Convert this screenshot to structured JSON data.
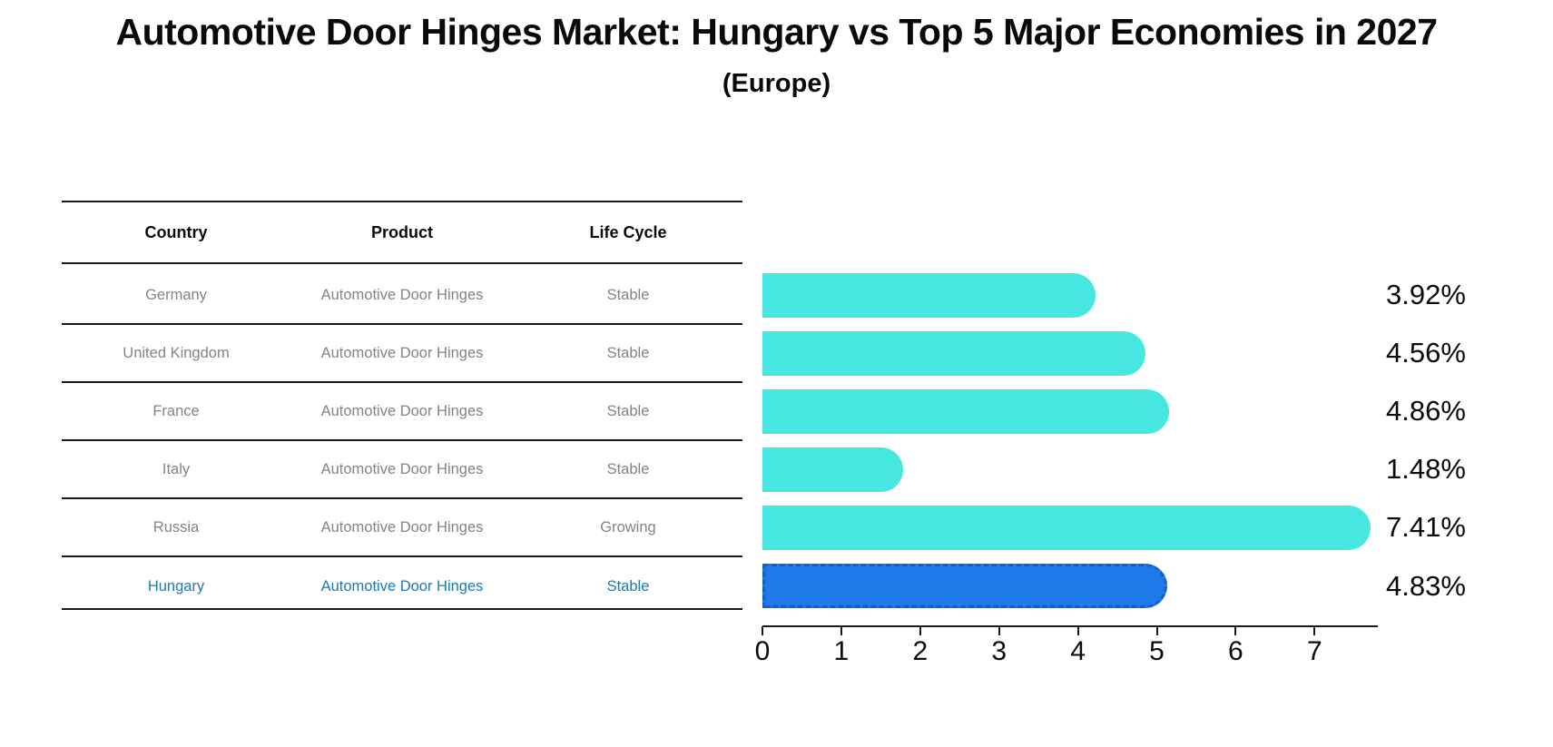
{
  "title": "Automotive Door Hinges Market: Hungary vs Top 5 Major Economies in 2027",
  "subtitle": "(Europe)",
  "table": {
    "headers": [
      "Country",
      "Product",
      "Life Cycle"
    ],
    "rows": [
      {
        "country": "Germany",
        "product": "Automotive Door Hinges",
        "life_cycle": "Stable",
        "highlight": false
      },
      {
        "country": "United Kingdom",
        "product": "Automotive Door Hinges",
        "life_cycle": "Stable",
        "highlight": false
      },
      {
        "country": "France",
        "product": "Automotive Door Hinges",
        "life_cycle": "Stable",
        "highlight": false
      },
      {
        "country": "Italy",
        "product": "Automotive Door Hinges",
        "life_cycle": "Stable",
        "highlight": false
      },
      {
        "country": "Russia",
        "product": "Automotive Door Hinges",
        "life_cycle": "Growing",
        "highlight": false
      },
      {
        "country": "Hungary",
        "product": "Automotive Door Hinges",
        "life_cycle": "Stable",
        "highlight": true
      }
    ]
  },
  "chart_data": {
    "type": "bar",
    "orientation": "horizontal",
    "title": "Automotive Door Hinges Market: Hungary vs Top 5 Major Economies in 2027 (Europe)",
    "categories": [
      "Germany",
      "United Kingdom",
      "France",
      "Italy",
      "Russia",
      "Hungary"
    ],
    "values": [
      3.92,
      4.56,
      4.86,
      1.48,
      7.41,
      4.83
    ],
    "labels": [
      "3.92%",
      "4.56%",
      "4.86%",
      "1.48%",
      "7.41%",
      "4.83%"
    ],
    "unit": "percent CAGR",
    "xlim": [
      0,
      7.8
    ],
    "xticks": [
      "0",
      "1",
      "2",
      "3",
      "4",
      "5",
      "6",
      "7"
    ],
    "grid": "off",
    "legend": "none",
    "bar_color": "#46e7e0",
    "highlight_index": 5,
    "highlight_bar_color": "#2079e8",
    "highlight_edge_color": "#1360cc",
    "highlight_text_color": "#1f77b4",
    "value_label_color": "#0a0a0a"
  }
}
